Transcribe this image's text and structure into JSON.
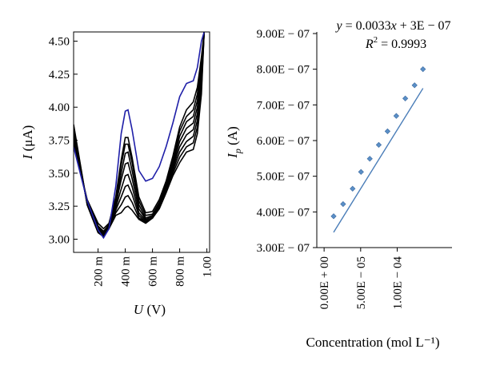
{
  "chart_data": [
    {
      "type": "line",
      "xlabel_var": "U",
      "xlabel_unit": "(V)",
      "ylabel_var": "I",
      "ylabel_unit": "(μA)",
      "xlim": [
        0.02,
        1.02
      ],
      "ylim": [
        2.9,
        4.57
      ],
      "x_ticks": [
        {
          "value": 0.2,
          "label": "200 m"
        },
        {
          "value": 0.4,
          "label": "400 m"
        },
        {
          "value": 0.6,
          "label": "600 m"
        },
        {
          "value": 0.8,
          "label": "800 m"
        },
        {
          "value": 1.0,
          "label": "1.00"
        }
      ],
      "y_ticks": [
        {
          "value": 3.0,
          "label": "3.00"
        },
        {
          "value": 3.25,
          "label": "3.25"
        },
        {
          "value": 3.5,
          "label": "3.50"
        },
        {
          "value": 3.75,
          "label": "3.75"
        },
        {
          "value": 4.0,
          "label": "4.00"
        },
        {
          "value": 4.25,
          "label": "4.25"
        },
        {
          "value": 4.5,
          "label": "4.50"
        }
      ],
      "series": [
        {
          "color": "#000000",
          "x": [
            0.02,
            0.12,
            0.2,
            0.24,
            0.28,
            0.33,
            0.37,
            0.4,
            0.42,
            0.45,
            0.5,
            0.55,
            0.6,
            0.65,
            0.7,
            0.75,
            0.8,
            0.85,
            0.9,
            0.93,
            0.96,
            0.98
          ],
          "y": [
            3.72,
            3.3,
            3.12,
            3.08,
            3.12,
            3.32,
            3.6,
            3.77,
            3.77,
            3.62,
            3.32,
            3.2,
            3.21,
            3.3,
            3.44,
            3.63,
            3.85,
            3.98,
            4.04,
            4.15,
            4.38,
            4.57
          ]
        },
        {
          "color": "#000000",
          "x": [
            0.02,
            0.12,
            0.2,
            0.24,
            0.28,
            0.33,
            0.37,
            0.4,
            0.42,
            0.45,
            0.5,
            0.55,
            0.6,
            0.65,
            0.7,
            0.75,
            0.8,
            0.85,
            0.9,
            0.93,
            0.96,
            0.98
          ],
          "y": [
            3.74,
            3.29,
            3.1,
            3.06,
            3.11,
            3.3,
            3.56,
            3.72,
            3.72,
            3.58,
            3.29,
            3.18,
            3.19,
            3.28,
            3.42,
            3.6,
            3.82,
            3.93,
            3.98,
            4.1,
            4.34,
            4.57
          ]
        },
        {
          "color": "#000000",
          "x": [
            0.02,
            0.12,
            0.2,
            0.24,
            0.28,
            0.33,
            0.37,
            0.4,
            0.42,
            0.45,
            0.5,
            0.55,
            0.6,
            0.65,
            0.7,
            0.75,
            0.8,
            0.85,
            0.9,
            0.93,
            0.96,
            0.98
          ],
          "y": [
            3.76,
            3.28,
            3.09,
            3.05,
            3.1,
            3.28,
            3.5,
            3.65,
            3.66,
            3.52,
            3.26,
            3.16,
            3.18,
            3.27,
            3.4,
            3.58,
            3.78,
            3.89,
            3.93,
            4.05,
            4.3,
            4.57
          ]
        },
        {
          "color": "#000000",
          "x": [
            0.02,
            0.12,
            0.2,
            0.24,
            0.28,
            0.33,
            0.37,
            0.4,
            0.42,
            0.45,
            0.5,
            0.55,
            0.6,
            0.65,
            0.7,
            0.75,
            0.8,
            0.85,
            0.9,
            0.93,
            0.96,
            0.98
          ],
          "y": [
            3.78,
            3.28,
            3.08,
            3.04,
            3.1,
            3.26,
            3.45,
            3.57,
            3.58,
            3.46,
            3.23,
            3.15,
            3.17,
            3.26,
            3.39,
            3.56,
            3.74,
            3.84,
            3.88,
            4.0,
            4.26,
            4.57
          ]
        },
        {
          "color": "#000000",
          "x": [
            0.02,
            0.12,
            0.2,
            0.24,
            0.28,
            0.33,
            0.37,
            0.4,
            0.42,
            0.45,
            0.5,
            0.55,
            0.6,
            0.65,
            0.7,
            0.75,
            0.8,
            0.85,
            0.9,
            0.93,
            0.96,
            0.98
          ],
          "y": [
            3.8,
            3.27,
            3.07,
            3.03,
            3.09,
            3.24,
            3.38,
            3.48,
            3.49,
            3.4,
            3.2,
            3.14,
            3.16,
            3.25,
            3.38,
            3.54,
            3.7,
            3.79,
            3.83,
            3.95,
            4.22,
            4.57
          ]
        },
        {
          "color": "#000000",
          "x": [
            0.02,
            0.12,
            0.2,
            0.24,
            0.28,
            0.33,
            0.37,
            0.4,
            0.42,
            0.45,
            0.5,
            0.55,
            0.6,
            0.65,
            0.7,
            0.75,
            0.8,
            0.85,
            0.9,
            0.93,
            0.96,
            0.98
          ],
          "y": [
            3.82,
            3.27,
            3.06,
            3.02,
            3.09,
            3.22,
            3.32,
            3.4,
            3.41,
            3.34,
            3.18,
            3.13,
            3.16,
            3.24,
            3.37,
            3.52,
            3.66,
            3.74,
            3.78,
            3.9,
            4.18,
            4.57
          ]
        },
        {
          "color": "#000000",
          "x": [
            0.02,
            0.12,
            0.2,
            0.24,
            0.28,
            0.33,
            0.37,
            0.4,
            0.42,
            0.45,
            0.5,
            0.55,
            0.6,
            0.65,
            0.7,
            0.75,
            0.8,
            0.85,
            0.9,
            0.93,
            0.96,
            0.98
          ],
          "y": [
            3.85,
            3.26,
            3.05,
            3.02,
            3.08,
            3.2,
            3.26,
            3.32,
            3.33,
            3.28,
            3.16,
            3.13,
            3.16,
            3.24,
            3.36,
            3.5,
            3.62,
            3.7,
            3.73,
            3.85,
            4.14,
            4.57
          ]
        },
        {
          "color": "#000000",
          "x": [
            0.02,
            0.12,
            0.2,
            0.24,
            0.28,
            0.33,
            0.37,
            0.4,
            0.42,
            0.45,
            0.5,
            0.55,
            0.6,
            0.65,
            0.7,
            0.75,
            0.8,
            0.85,
            0.9,
            0.93,
            0.96,
            0.98
          ],
          "y": [
            3.87,
            3.26,
            3.05,
            3.02,
            3.08,
            3.18,
            3.2,
            3.24,
            3.25,
            3.22,
            3.15,
            3.12,
            3.16,
            3.23,
            3.35,
            3.48,
            3.58,
            3.66,
            3.68,
            3.8,
            4.1,
            4.57
          ]
        },
        {
          "color": "#1f1fa8",
          "x": [
            0.02,
            0.12,
            0.2,
            0.24,
            0.28,
            0.33,
            0.37,
            0.4,
            0.42,
            0.45,
            0.5,
            0.55,
            0.6,
            0.65,
            0.7,
            0.75,
            0.8,
            0.85,
            0.9,
            0.93,
            0.96,
            0.98
          ],
          "y": [
            3.7,
            3.29,
            3.07,
            3.01,
            3.08,
            3.4,
            3.8,
            3.97,
            3.98,
            3.83,
            3.52,
            3.44,
            3.46,
            3.55,
            3.7,
            3.88,
            4.08,
            4.18,
            4.2,
            4.3,
            4.5,
            4.57
          ]
        }
      ]
    },
    {
      "type": "scatter",
      "xlabel": "Concentration (mol L⁻¹)",
      "ylabel_var": "I",
      "ylabel_sub": "p",
      "ylabel_unit": "(A)",
      "xlim": [
        -1e-05,
        0.000175
      ],
      "ylim": [
        3e-07,
        9e-07
      ],
      "x_ticks": [
        {
          "value": 0,
          "label": "0.00E + 00"
        },
        {
          "value": 5e-05,
          "label": "5.00E − 05"
        },
        {
          "value": 0.0001,
          "label": "1.00E − 04"
        }
      ],
      "y_ticks": [
        {
          "value": 3e-07,
          "label": "3.00E − 07"
        },
        {
          "value": 4e-07,
          "label": "4.00E − 07"
        },
        {
          "value": 5e-07,
          "label": "5.00E − 07"
        },
        {
          "value": 6e-07,
          "label": "6.00E − 07"
        },
        {
          "value": 7e-07,
          "label": "7.00E − 07"
        },
        {
          "value": 8e-07,
          "label": "8.00E − 07"
        },
        {
          "value": 9e-07,
          "label": "9.00E − 07"
        }
      ],
      "equation_lhs": "y",
      "equation_rhs": " = 0.0033",
      "equation_var": "x",
      "equation_tail": " + 3E − 07",
      "r2_lhs": "R",
      "r2_sup": "2",
      "r2_rhs": " = 0.9993",
      "trendline": {
        "slope": 0.0033,
        "intercept": 3e-07,
        "color": "#4a7db8"
      },
      "points_color": "#5a8fc7",
      "x": [
        1.3e-05,
        2.6e-05,
        3.9e-05,
        5.05e-05,
        6.25e-05,
        7.48e-05,
        8.68e-05,
        9.88e-05,
        0.0001111,
        0.0001238,
        0.0001353
      ],
      "y": [
        3.88e-07,
        4.22e-07,
        4.65e-07,
        5.12e-07,
        5.49e-07,
        5.88e-07,
        6.26e-07,
        6.69e-07,
        7.18e-07,
        7.55e-07,
        8e-07
      ]
    }
  ]
}
